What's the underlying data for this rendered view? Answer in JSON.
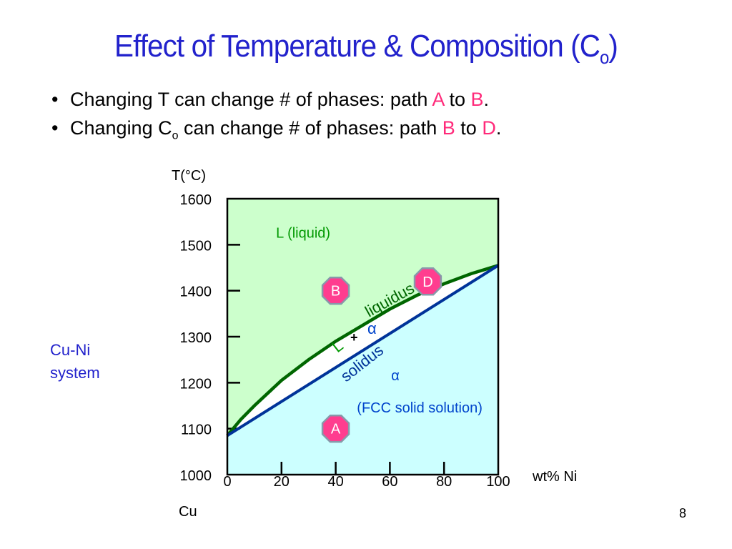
{
  "slide": {
    "title_main": "Effect of Temperature & Composition (C",
    "title_sub": "o",
    "title_end": ")",
    "bullets": [
      {
        "parts": [
          "Changing T can change # of phases:  path ",
          "A",
          " to ",
          "B",
          "."
        ]
      },
      {
        "parts": [
          "Changing C",
          "o",
          " can change # of phases: path ",
          "B",
          " to ",
          "D",
          "."
        ]
      }
    ],
    "side_label_line1": "Cu-Ni",
    "side_label_line2": "system",
    "slide_number": "8"
  },
  "colors": {
    "title": "#2222cc",
    "highlight": "#ff2a7a",
    "liquid_region": "#ccffcc",
    "solid_region": "#ccffff",
    "liquidus": "#006600",
    "solidus": "#003399",
    "marker_fill": "#ff3d8f",
    "marker_stroke": "#8899aa"
  },
  "chart_data": {
    "type": "phase-diagram",
    "ylabel": "T(°C)",
    "xlabel": "wt% Ni",
    "x_endpoint_label": "Cu",
    "xlim": [
      0,
      100
    ],
    "ylim": [
      1000,
      1600
    ],
    "x_ticks": [
      0,
      20,
      40,
      60,
      80,
      100
    ],
    "y_ticks": [
      1000,
      1100,
      1200,
      1300,
      1400,
      1500,
      1600
    ],
    "liquidus": {
      "label": "liquidus",
      "points": [
        [
          0,
          1085
        ],
        [
          5,
          1120
        ],
        [
          10,
          1150
        ],
        [
          20,
          1205
        ],
        [
          30,
          1250
        ],
        [
          40,
          1290
        ],
        [
          50,
          1325
        ],
        [
          60,
          1360
        ],
        [
          70,
          1390
        ],
        [
          80,
          1415
        ],
        [
          90,
          1437
        ],
        [
          100,
          1455
        ]
      ]
    },
    "solidus": {
      "label": "solidus",
      "points": [
        [
          0,
          1085
        ],
        [
          100,
          1455
        ]
      ]
    },
    "regions": [
      {
        "label": "L (liquid)",
        "x": 28,
        "y": 1515,
        "color": "#009900"
      },
      {
        "label": "α",
        "x": 62,
        "y": 1205,
        "color": "#0044cc"
      },
      {
        "label": "(FCC solid solution)",
        "x": 71,
        "y": 1135,
        "color": "#0044cc"
      }
    ],
    "two_phase_label": {
      "L": "L",
      "plus": "+",
      "alpha": "α"
    },
    "points": [
      {
        "name": "A",
        "x": 40,
        "y": 1100
      },
      {
        "name": "B",
        "x": 40,
        "y": 1400
      },
      {
        "name": "D",
        "x": 74,
        "y": 1420
      }
    ]
  }
}
